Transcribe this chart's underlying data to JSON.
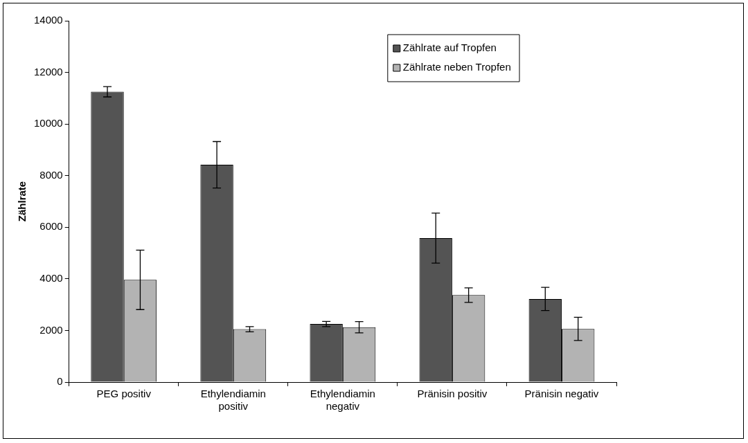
{
  "chart_data": {
    "type": "bar",
    "ylabel": "Zählrate",
    "categories": [
      "PEG positiv",
      "Ethylendiamin positiv",
      "Ethylendiamin negativ",
      "Pränisin positiv",
      "Pränisin negativ"
    ],
    "series": [
      {
        "name": "Zählrate auf Tropfen",
        "color": "#545454",
        "values": [
          11250,
          8420,
          2250,
          5580,
          3220
        ],
        "errors": [
          200,
          900,
          100,
          970,
          450
        ]
      },
      {
        "name": "Zählrate neben Tropfen",
        "color": "#b3b3b3",
        "values": [
          3960,
          2050,
          2125,
          3370,
          2060
        ],
        "errors": [
          1150,
          100,
          220,
          280,
          450
        ]
      }
    ],
    "ylim": [
      0,
      14000
    ],
    "yticks": [
      0,
      2000,
      4000,
      6000,
      8000,
      10000,
      12000,
      14000
    ],
    "grid": false,
    "legend": "top right"
  }
}
